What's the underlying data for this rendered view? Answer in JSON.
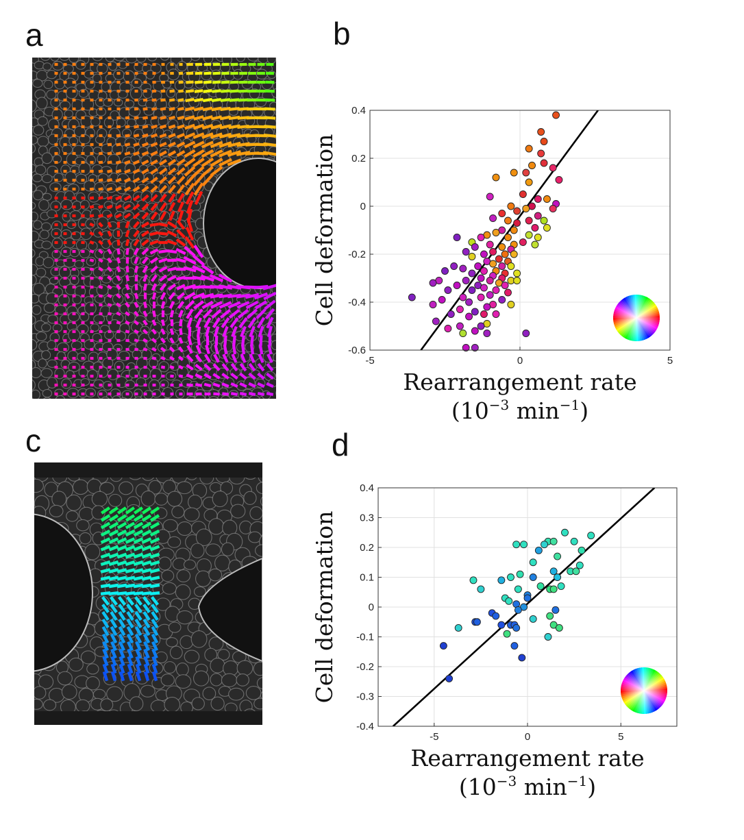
{
  "panels": {
    "a": {
      "letter": "a"
    },
    "b": {
      "letter": "b"
    },
    "c": {
      "letter": "c"
    },
    "d": {
      "letter": "d"
    }
  },
  "chart_data": [
    {
      "id": "b",
      "type": "scatter",
      "title": "",
      "xlabel_line1": "Rearrangement rate",
      "xlabel_line2": "(10-3 min-1)",
      "xlabel_unit_parts": {
        "open": "(10",
        "exp1": "−3",
        "mid": " min",
        "exp2": "−1",
        "close": ")"
      },
      "ylabel": "Cell deformation",
      "xlim": [
        -5,
        5
      ],
      "ylim": [
        -0.6,
        0.4
      ],
      "xticks": [
        -5,
        0,
        5
      ],
      "yticks": [
        -0.6,
        -0.4,
        -0.2,
        0,
        0.2,
        0.4
      ],
      "ytick_labels": [
        "-0.6",
        "-0.4",
        "-0.2",
        "0",
        "0.2",
        "0.4"
      ],
      "xtick_labels": [
        "-5",
        "0",
        "5"
      ],
      "grid": true,
      "legend": "color wheel at bottom-right (orientation hue)",
      "fit_line": {
        "x": [
          -3.3,
          2.6
        ],
        "y": [
          -0.6,
          0.4
        ],
        "color": "#000000"
      },
      "points": [
        [
          1.2,
          0.38,
          "#e8501c"
        ],
        [
          0.7,
          0.31,
          "#e8501c"
        ],
        [
          0.8,
          0.27,
          "#e84a1a"
        ],
        [
          0.3,
          0.24,
          "#f07a12"
        ],
        [
          0.7,
          0.22,
          "#e83a3a"
        ],
        [
          0.8,
          0.18,
          "#e0303a"
        ],
        [
          0.4,
          0.17,
          "#f08a10"
        ],
        [
          1.1,
          0.16,
          "#e82868"
        ],
        [
          -0.2,
          0.14,
          "#f09010"
        ],
        [
          0.2,
          0.14,
          "#e04040"
        ],
        [
          -0.8,
          0.12,
          "#f09010"
        ],
        [
          0.3,
          0.1,
          "#f09a10"
        ],
        [
          1.3,
          0.11,
          "#e8206a"
        ],
        [
          -1.0,
          0.04,
          "#d020c0"
        ],
        [
          0.1,
          0.05,
          "#e03030"
        ],
        [
          0.6,
          0.03,
          "#e01a6a"
        ],
        [
          0.9,
          0.03,
          "#f08a10"
        ],
        [
          1.2,
          0.01,
          "#c010c0"
        ],
        [
          1.1,
          -0.01,
          "#e83060"
        ],
        [
          0.4,
          0.0,
          "#d01050"
        ],
        [
          -0.3,
          0.0,
          "#f07a12"
        ],
        [
          -0.1,
          -0.02,
          "#e04030"
        ],
        [
          0.2,
          -0.01,
          "#f0a020"
        ],
        [
          0.6,
          -0.04,
          "#d02080"
        ],
        [
          -0.6,
          -0.03,
          "#e83030"
        ],
        [
          -0.9,
          -0.05,
          "#c020c0"
        ],
        [
          0.8,
          -0.06,
          "#b0e020"
        ],
        [
          0.3,
          -0.06,
          "#e02050"
        ],
        [
          -0.4,
          -0.06,
          "#f07a12"
        ],
        [
          -0.1,
          -0.07,
          "#d81a40"
        ],
        [
          0.5,
          -0.09,
          "#e01a6a"
        ],
        [
          0.9,
          -0.09,
          "#e0e020"
        ],
        [
          -0.6,
          -0.1,
          "#d020a0"
        ],
        [
          -0.2,
          -0.1,
          "#f08a10"
        ],
        [
          -1.1,
          -0.12,
          "#f09010"
        ],
        [
          -0.8,
          -0.11,
          "#f0a020"
        ],
        [
          0.3,
          -0.12,
          "#c0e030"
        ],
        [
          0.6,
          -0.13,
          "#e0e020"
        ],
        [
          -1.3,
          -0.13,
          "#e020b0"
        ],
        [
          -0.4,
          -0.13,
          "#f08a10"
        ],
        [
          -2.1,
          -0.13,
          "#8020c0"
        ],
        [
          -1.6,
          -0.15,
          "#c0e020"
        ],
        [
          0.1,
          -0.15,
          "#e02060"
        ],
        [
          0.5,
          -0.16,
          "#c0e030"
        ],
        [
          -0.2,
          -0.16,
          "#f09010"
        ],
        [
          -1.5,
          -0.17,
          "#a020c0"
        ],
        [
          -1.0,
          -0.16,
          "#e020a0"
        ],
        [
          -0.6,
          -0.17,
          "#f09010"
        ],
        [
          -0.3,
          -0.18,
          "#d820a0"
        ],
        [
          -1.8,
          -0.19,
          "#9020c0"
        ],
        [
          -0.9,
          -0.19,
          "#e01a60"
        ],
        [
          -0.5,
          -0.2,
          "#f07010"
        ],
        [
          -1.2,
          -0.2,
          "#c010c0"
        ],
        [
          -0.2,
          -0.2,
          "#f0b020"
        ],
        [
          -1.6,
          -0.21,
          "#e0d020"
        ],
        [
          -0.7,
          -0.22,
          "#e03030"
        ],
        [
          -1.1,
          -0.23,
          "#d020c0"
        ],
        [
          -0.4,
          -0.23,
          "#e06020"
        ],
        [
          -0.9,
          -0.24,
          "#f0a020"
        ],
        [
          -1.4,
          -0.25,
          "#c010c0"
        ],
        [
          -0.6,
          -0.25,
          "#d020a0"
        ],
        [
          -2.2,
          -0.25,
          "#9020c0"
        ],
        [
          -0.3,
          -0.25,
          "#e0e020"
        ],
        [
          -1.9,
          -0.26,
          "#a020c0"
        ],
        [
          -1.2,
          -0.27,
          "#e020b0"
        ],
        [
          -0.8,
          -0.27,
          "#f08a10"
        ],
        [
          -0.5,
          -0.28,
          "#e83030"
        ],
        [
          -0.1,
          -0.28,
          "#e0e020"
        ],
        [
          -1.6,
          -0.28,
          "#9020c0"
        ],
        [
          -2.5,
          -0.27,
          "#8020c0"
        ],
        [
          -0.9,
          -0.29,
          "#d020c0"
        ],
        [
          -1.3,
          -0.3,
          "#c010c0"
        ],
        [
          -0.6,
          -0.3,
          "#e01a6a"
        ],
        [
          -0.3,
          -0.31,
          "#e0d020"
        ],
        [
          -1.8,
          -0.31,
          "#a020c0"
        ],
        [
          -2.7,
          -0.31,
          "#c020c0"
        ],
        [
          -1.0,
          -0.31,
          "#d020a0"
        ],
        [
          -0.7,
          -0.32,
          "#f0a020"
        ],
        [
          -0.1,
          -0.31,
          "#e0e020"
        ],
        [
          -1.4,
          -0.33,
          "#9020c0"
        ],
        [
          -2.1,
          -0.33,
          "#c010c0"
        ],
        [
          -0.5,
          -0.33,
          "#e020b0"
        ],
        [
          -1.2,
          -0.34,
          "#d020c0"
        ],
        [
          -2.9,
          -0.32,
          "#a020c0"
        ],
        [
          -0.8,
          -0.35,
          "#e020b0"
        ],
        [
          -1.6,
          -0.35,
          "#8020c0"
        ],
        [
          -2.4,
          -0.35,
          "#9020c0"
        ],
        [
          -0.4,
          -0.36,
          "#e01a6a"
        ],
        [
          -1.0,
          -0.37,
          "#c020c0"
        ],
        [
          -1.9,
          -0.38,
          "#d020c0"
        ],
        [
          -1.3,
          -0.38,
          "#e020b0"
        ],
        [
          -0.6,
          -0.39,
          "#9020c0"
        ],
        [
          -2.6,
          -0.39,
          "#c010c0"
        ],
        [
          -3.6,
          -0.38,
          "#8020c0"
        ],
        [
          -1.7,
          -0.4,
          "#a020c0"
        ],
        [
          -0.9,
          -0.41,
          "#e020a0"
        ],
        [
          -1.1,
          -0.42,
          "#c010c0"
        ],
        [
          -0.3,
          -0.41,
          "#e0d020"
        ],
        [
          -2.9,
          -0.41,
          "#c020c0"
        ],
        [
          -2.0,
          -0.43,
          "#e020b0"
        ],
        [
          -1.5,
          -0.44,
          "#8020c0"
        ],
        [
          -1.2,
          -0.45,
          "#e01a6a"
        ],
        [
          -2.3,
          -0.45,
          "#9020c0"
        ],
        [
          -0.8,
          -0.45,
          "#e020b0"
        ],
        [
          -1.7,
          -0.46,
          "#c010c0"
        ],
        [
          -2.8,
          -0.48,
          "#a020c0"
        ],
        [
          -1.1,
          -0.49,
          "#e0d020"
        ],
        [
          -2.0,
          -0.5,
          "#c020c0"
        ],
        [
          -1.3,
          -0.5,
          "#9020c0"
        ],
        [
          -2.4,
          -0.51,
          "#e020b0"
        ],
        [
          -1.5,
          -0.52,
          "#c010c0"
        ],
        [
          -1.9,
          -0.53,
          "#b0e030"
        ],
        [
          -1.1,
          -0.53,
          "#a020c0"
        ],
        [
          0.2,
          -0.53,
          "#9020c0"
        ],
        [
          -1.8,
          -0.59,
          "#c010c0"
        ],
        [
          -1.5,
          -0.59,
          "#a020c0"
        ]
      ]
    },
    {
      "id": "d",
      "type": "scatter",
      "title": "",
      "xlabel_line1": "Rearrangement rate",
      "xlabel_line2": "(10-3 min-1)",
      "xlabel_unit_parts": {
        "open": "(10",
        "exp1": "−3",
        "mid": " min",
        "exp2": "−1",
        "close": ")"
      },
      "ylabel": "Cell deformation",
      "xlim": [
        -8,
        8
      ],
      "ylim": [
        -0.4,
        0.4
      ],
      "xticks": [
        -5,
        0,
        5
      ],
      "yticks": [
        -0.4,
        -0.3,
        -0.2,
        -0.1,
        0,
        0.1,
        0.2,
        0.3,
        0.4
      ],
      "ytick_labels": [
        "-0.4",
        "-0.3",
        "-0.2",
        "-0.1",
        "0",
        "0.1",
        "0.2",
        "0.3",
        "0.4"
      ],
      "xtick_labels": [
        "-5",
        "0",
        "5"
      ],
      "grid": true,
      "legend": "color wheel at bottom-right (orientation hue)",
      "fit_line": {
        "x": [
          -7.2,
          6.8
        ],
        "y": [
          -0.4,
          0.4
        ],
        "color": "#000000"
      },
      "points": [
        [
          2.0,
          0.25,
          "#30e0c0"
        ],
        [
          3.4,
          0.24,
          "#30e0c0"
        ],
        [
          1.1,
          0.22,
          "#30e0b0"
        ],
        [
          1.4,
          0.22,
          "#40e0a0"
        ],
        [
          2.5,
          0.22,
          "#30e0c0"
        ],
        [
          -0.6,
          0.21,
          "#30e0c0"
        ],
        [
          -0.2,
          0.21,
          "#30e0c0"
        ],
        [
          0.9,
          0.21,
          "#30d0d0"
        ],
        [
          0.6,
          0.19,
          "#20a0e0"
        ],
        [
          2.9,
          0.19,
          "#30e0b0"
        ],
        [
          1.6,
          0.17,
          "#40e0a0"
        ],
        [
          0.3,
          0.15,
          "#30e0c0"
        ],
        [
          2.8,
          0.14,
          "#30e0c0"
        ],
        [
          2.3,
          0.12,
          "#30e0b0"
        ],
        [
          2.6,
          0.12,
          "#40e0a0"
        ],
        [
          1.4,
          0.12,
          "#20b0e0"
        ],
        [
          -0.4,
          0.11,
          "#30e0b0"
        ],
        [
          -0.9,
          0.1,
          "#30e0c0"
        ],
        [
          0.3,
          0.1,
          "#2080e0"
        ],
        [
          1.6,
          0.1,
          "#20c0e0"
        ],
        [
          -2.9,
          0.09,
          "#30e0c0"
        ],
        [
          -1.4,
          0.09,
          "#20b0e0"
        ],
        [
          0.7,
          0.07,
          "#30e0a0"
        ],
        [
          1.2,
          0.06,
          "#30e080"
        ],
        [
          1.8,
          0.07,
          "#30e0c0"
        ],
        [
          -2.5,
          0.06,
          "#30d0d0"
        ],
        [
          -0.5,
          0.06,
          "#30e0c0"
        ],
        [
          1.4,
          0.06,
          "#40e080"
        ],
        [
          0.0,
          0.04,
          "#2080e0"
        ],
        [
          0.0,
          0.03,
          "#2070e0"
        ],
        [
          -1.2,
          0.03,
          "#30e0c0"
        ],
        [
          -0.6,
          0.01,
          "#2070e0"
        ],
        [
          -1.0,
          0.02,
          "#30e0c0"
        ],
        [
          -0.2,
          0.0,
          "#2090e0"
        ],
        [
          -0.5,
          -0.01,
          "#2080e0"
        ],
        [
          1.5,
          -0.01,
          "#2070e0"
        ],
        [
          -1.9,
          -0.02,
          "#2050e0"
        ],
        [
          -1.7,
          -0.03,
          "#2060e0"
        ],
        [
          1.2,
          -0.03,
          "#40e080"
        ],
        [
          -2.8,
          -0.05,
          "#2050e0"
        ],
        [
          -2.7,
          -0.05,
          "#2060e0"
        ],
        [
          0.3,
          -0.04,
          "#30d0d0"
        ],
        [
          -0.9,
          -0.06,
          "#2060e0"
        ],
        [
          -0.7,
          -0.06,
          "#2060e0"
        ],
        [
          -0.6,
          -0.07,
          "#2070e0"
        ],
        [
          1.4,
          -0.06,
          "#40e080"
        ],
        [
          -3.7,
          -0.07,
          "#30d0d0"
        ],
        [
          1.7,
          -0.07,
          "#40e080"
        ],
        [
          -1.4,
          -0.06,
          "#2050e0"
        ],
        [
          -1.1,
          -0.09,
          "#40e080"
        ],
        [
          1.1,
          -0.1,
          "#30d0d0"
        ],
        [
          -0.7,
          -0.13,
          "#2060e0"
        ],
        [
          -4.5,
          -0.13,
          "#2040d0"
        ],
        [
          -0.3,
          -0.17,
          "#2040d0"
        ],
        [
          -4.2,
          -0.24,
          "#2040d0"
        ]
      ]
    }
  ]
}
